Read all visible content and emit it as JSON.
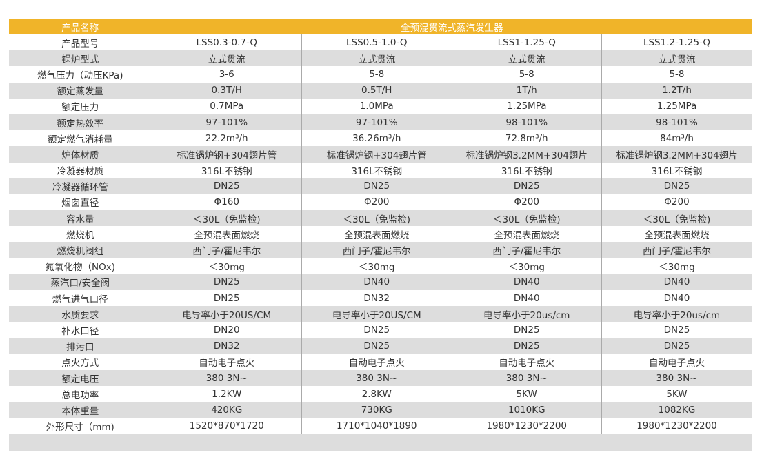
{
  "header": {
    "label": "产品名称",
    "product": "全预混贯流式蒸汽发生器"
  },
  "rows": [
    {
      "label": "产品型号",
      "values": [
        "LSS0.3-0.7-Q",
        "LSS0.5-1.0-Q",
        "LSS1-1.25-Q",
        "LSS1.2-1.25-Q"
      ]
    },
    {
      "label": "锅炉型式",
      "values": [
        "立式贯流",
        "立式贯流",
        "立式贯流",
        "立式贯流"
      ]
    },
    {
      "label": "燃气压力（动压KPa)",
      "values": [
        "3-6",
        "5-8",
        "5-8",
        "5-8"
      ]
    },
    {
      "label": "额定蒸发量",
      "values": [
        "0.3T/H",
        "0.5T/H",
        "1T/h",
        "1.2T/h"
      ]
    },
    {
      "label": "额定压力",
      "values": [
        "0.7MPa",
        "1.0MPa",
        "1.25MPa",
        "1.25MPa"
      ]
    },
    {
      "label": "额定热效率",
      "values": [
        "97-101%",
        "97-101%",
        "98-101%",
        "98-101%"
      ]
    },
    {
      "label": "额定燃气消耗量",
      "values": [
        "22.2m³/h",
        "36.26m³/h",
        "72.8m³/h",
        "84m³/h"
      ]
    },
    {
      "label": "炉体材质",
      "values": [
        "标准锅炉钢+304翅片管",
        "标准锅炉钢+304翅片管",
        "标准锅炉钢3.2MM+304翅片",
        "标准锅炉钢3.2MM+304翅片"
      ]
    },
    {
      "label": "冷凝器材质",
      "values": [
        "316L不锈钢",
        "316L不锈钢",
        "316L不锈钢",
        "316L不锈钢"
      ]
    },
    {
      "label": "冷凝器循环管",
      "values": [
        "DN25",
        "DN25",
        "DN25",
        "DN25"
      ]
    },
    {
      "label": "烟囱直径",
      "values": [
        "Φ160",
        "Φ200",
        "Φ200",
        "Φ200"
      ]
    },
    {
      "label": "容水量",
      "values": [
        "＜30L（免监检)",
        "＜30L（免监检)",
        "＜30L（免监检)",
        "＜30L（免监检)"
      ]
    },
    {
      "label": "燃烧机",
      "values": [
        "全预混表面燃烧",
        "全预混表面燃烧",
        "全预混表面燃烧",
        "全预混表面燃烧"
      ]
    },
    {
      "label": "燃烧机阀组",
      "values": [
        "西门子/霍尼韦尔",
        "西门子/霍尼韦尔",
        "西门子/霍尼韦尔",
        "西门子/霍尼韦尔"
      ]
    },
    {
      "label": "氮氧化物（NOx)",
      "values": [
        "＜30mg",
        "＜30mg",
        "＜30mg",
        "＜30mg"
      ]
    },
    {
      "label": "蒸汽口/安全阀",
      "values": [
        "DN25",
        "DN40",
        "DN40",
        "DN40"
      ]
    },
    {
      "label": "燃气进气口径",
      "values": [
        "DN25",
        "DN32",
        "DN40",
        "DN40"
      ]
    },
    {
      "label": "水质要求",
      "values": [
        "电导率小于20US/CM",
        "电导率小于20US/CM",
        "电导率小于20us/cm",
        "电导率小于20us/cm"
      ]
    },
    {
      "label": "补水口径",
      "values": [
        "DN20",
        "DN25",
        "DN25",
        "DN25"
      ]
    },
    {
      "label": "排污口",
      "values": [
        "DN32",
        "DN25",
        "DN25",
        "DN25"
      ]
    },
    {
      "label": "点火方式",
      "values": [
        "自动电子点火",
        "自动电子点火",
        "自动电子点火",
        "自动电子点火"
      ]
    },
    {
      "label": "额定电压",
      "values": [
        "380 3N~",
        "380 3N~",
        "380 3N~",
        "380 3N~"
      ]
    },
    {
      "label": "总电功率",
      "values": [
        "1.2KW",
        "2.8KW",
        "5KW",
        "5KW"
      ]
    },
    {
      "label": "本体重量",
      "values": [
        "420KG",
        "730KG",
        "1010KG",
        "1082KG"
      ]
    },
    {
      "label": "外形尺寸（mm)",
      "values": [
        "1520*870*1720",
        "1710*1040*1890",
        "1980*1230*2200",
        "1980*1230*2200"
      ]
    }
  ],
  "colors": {
    "header": "#f0b429",
    "stripe": "#dddddd"
  }
}
